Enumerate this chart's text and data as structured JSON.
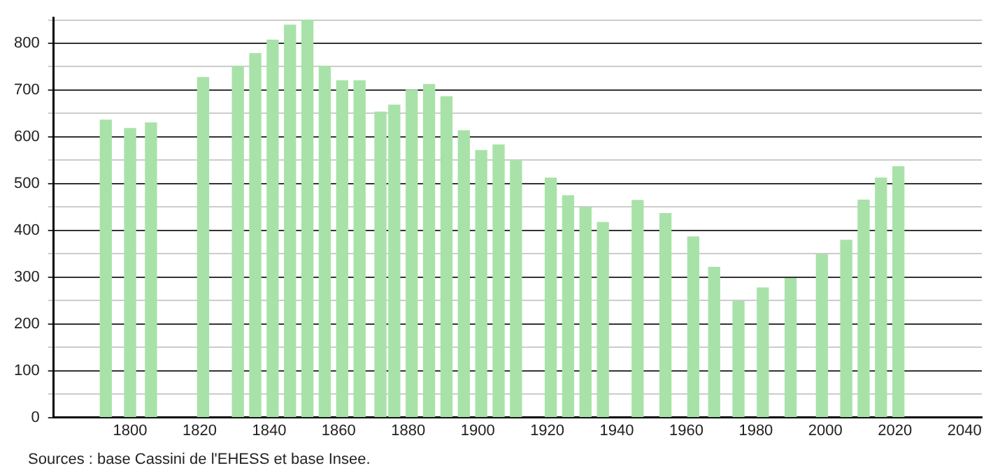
{
  "chart_data": {
    "type": "bar",
    "x": [
      1793,
      1800,
      1806,
      1821,
      1831,
      1836,
      1841,
      1846,
      1851,
      1856,
      1861,
      1866,
      1872,
      1876,
      1881,
      1886,
      1891,
      1896,
      1901,
      1906,
      1911,
      1921,
      1926,
      1931,
      1936,
      1946,
      1954,
      1962,
      1968,
      1975,
      1982,
      1990,
      1999,
      2006,
      2011,
      2016,
      2021
    ],
    "values": [
      636,
      618,
      630,
      727,
      751,
      778,
      807,
      839,
      850,
      751,
      720,
      720,
      653,
      668,
      700,
      712,
      686,
      613,
      571,
      583,
      549,
      512,
      474,
      449,
      417,
      464,
      436,
      386,
      321,
      248,
      277,
      297,
      348,
      379,
      465,
      512,
      536
    ],
    "color": "#a8e2a8",
    "xlim": [
      1778,
      2045
    ],
    "xticks": [
      1800,
      1820,
      1840,
      1860,
      1880,
      1900,
      1920,
      1940,
      1960,
      1980,
      2000,
      2020,
      2040
    ],
    "ylim": [
      0,
      855
    ],
    "yticks": [
      0,
      {
        "value": 50,
        "label": null
      },
      100,
      {
        "value": 150,
        "label": null
      },
      200,
      {
        "value": 250,
        "label": null
      },
      300,
      {
        "value": 350,
        "label": null
      },
      400,
      {
        "value": 450,
        "label": null
      },
      500,
      {
        "value": 550,
        "label": null
      },
      600,
      {
        "value": 650,
        "label": null
      },
      700,
      {
        "value": 750,
        "label": null
      },
      800,
      {
        "value": 850,
        "label": null
      }
    ],
    "grid": "y",
    "legend": false,
    "annotations": [
      "Sources : base Cassini de l'EHESS et base Insee."
    ]
  }
}
